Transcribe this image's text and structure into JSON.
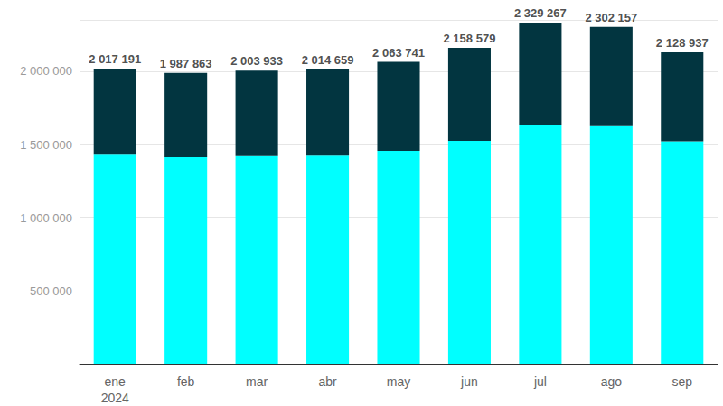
{
  "chart_data": {
    "type": "bar",
    "stacked": true,
    "grid": true,
    "categories": [
      "ene\n2024",
      "feb",
      "mar",
      "abr",
      "may",
      "jun",
      "jul",
      "ago",
      "sep"
    ],
    "series": [
      {
        "color": "#00ffff",
        "values": [
          1432000,
          1415000,
          1422000,
          1425000,
          1458000,
          1525000,
          1632000,
          1625000,
          1522000
        ]
      },
      {
        "color": "#023540",
        "values": [
          585191,
          572863,
          581933,
          589659,
          605741,
          633579,
          697267,
          677157,
          606937
        ]
      }
    ],
    "totals": [
      2017191,
      1987863,
      2003933,
      2014659,
      2063741,
      2158579,
      2329267,
      2302157,
      2128937
    ],
    "total_labels": [
      "2 017 191",
      "1 987 863",
      "2 003 933",
      "2 014 659",
      "2 063 741",
      "2 158 579",
      "2 329 267",
      "2 302 157",
      "2 128 937"
    ],
    "ylim": [
      0,
      2350000
    ],
    "yticks": [
      {
        "value": 500000,
        "label": "500 000"
      },
      {
        "value": 1000000,
        "label": "1 000 000"
      },
      {
        "value": 1500000,
        "label": "1 500 000"
      },
      {
        "value": 2000000,
        "label": "2 000 000"
      }
    ]
  }
}
